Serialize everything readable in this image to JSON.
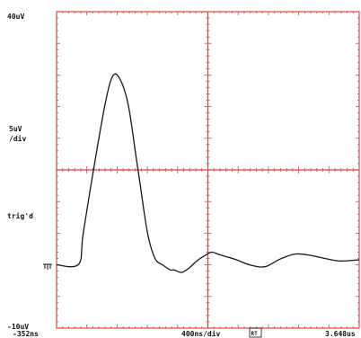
{
  "chart_data": {
    "type": "line",
    "title": "",
    "xlabel": "",
    "ylabel": "",
    "x_unit": "ns",
    "y_unit": "uV",
    "xlim": [
      -352,
      3648
    ],
    "ylim": [
      -10,
      40
    ],
    "series": [
      {
        "x": [
          -352,
          -60,
          0,
          150,
          300,
          400,
          500,
          600,
          700,
          750,
          850,
          950,
          1050,
          1150,
          1200,
          1300,
          1400,
          1500,
          1600,
          1700,
          1800,
          2000,
          2200,
          2400,
          2600,
          2800,
          3000,
          3200,
          3400,
          3648
        ],
        "y": [
          0,
          0.1,
          5,
          16,
          26,
          30,
          29,
          25,
          17,
          13,
          5,
          1,
          0,
          -0.8,
          -0.8,
          -1.2,
          -0.5,
          0.6,
          1.4,
          2.0,
          1.6,
          0.9,
          0.0,
          -0.3,
          0.9,
          1.7,
          1.5,
          1.0,
          0.6,
          0.8
        ]
      }
    ]
  },
  "labels": {
    "top_y": "40uV",
    "scale_line1": "5uV",
    "scale_line2": "/div",
    "trig_label": "trig'd",
    "bottom_y": "-10uV",
    "x_start": "-352ns",
    "x_per_div": "400ns/div",
    "rt_badge": "RT",
    "x_end": "3.648us"
  },
  "colors": {
    "grid": "#d44545",
    "trace": "#161616",
    "text": "#111111"
  }
}
